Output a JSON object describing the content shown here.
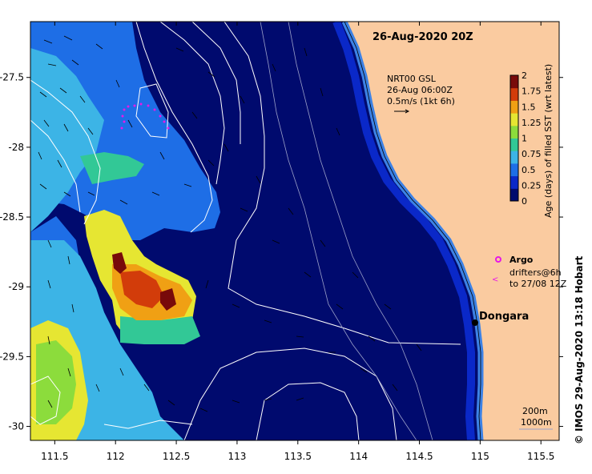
{
  "title": "26-Aug-2020 20Z",
  "current_legend": {
    "lines": [
      "NRT00 GSL",
      "26-Aug 06:00Z",
      "0.5m/s (1kt 6h)"
    ]
  },
  "colorbar": {
    "label": "Age (days) of filled SST (wrt latest)",
    "ticks": [
      "2",
      "1.75",
      "1.5",
      "1.25",
      "1",
      "0.75",
      "0.5",
      "0.25",
      "0"
    ],
    "range": [
      0,
      2
    ],
    "colors": [
      "#000a6e",
      "#0a28c8",
      "#1e6ee6",
      "#3cb4e6",
      "#32c896",
      "#8cdc3c",
      "#e6e632",
      "#f0a014",
      "#d23c0a",
      "#780a0a"
    ]
  },
  "argo_legend": {
    "label": "Argo",
    "color": "#e619e6"
  },
  "drifter_legend": {
    "label1": "drifters@6h",
    "label2": "to 27/08 12Z",
    "color": "#e619e6"
  },
  "place": {
    "name": "Dongara",
    "lon": 114.93,
    "lat": -29.26
  },
  "depth_legend": {
    "c1": "200m",
    "c2": "1000m"
  },
  "credit": "©  IMOS 29-Aug-2020 13:18 Hobart",
  "axes": {
    "x_ticks": [
      "111.5",
      "112",
      "112.5",
      "113",
      "113.5",
      "114",
      "114.5",
      "115",
      "115.5"
    ],
    "y_ticks": [
      "-27.5",
      "-28",
      "-28.5",
      "-29",
      "-29.5",
      "-30"
    ],
    "lon_range": [
      111.3,
      115.65
    ],
    "lat_range": [
      -30.1,
      -27.1
    ]
  },
  "colors": {
    "land": "#facba0",
    "sea_deep": "#000a6e",
    "coast_band": "#0a28c8",
    "coast_edge": "#3c82e6",
    "contour": "#ffffff"
  }
}
